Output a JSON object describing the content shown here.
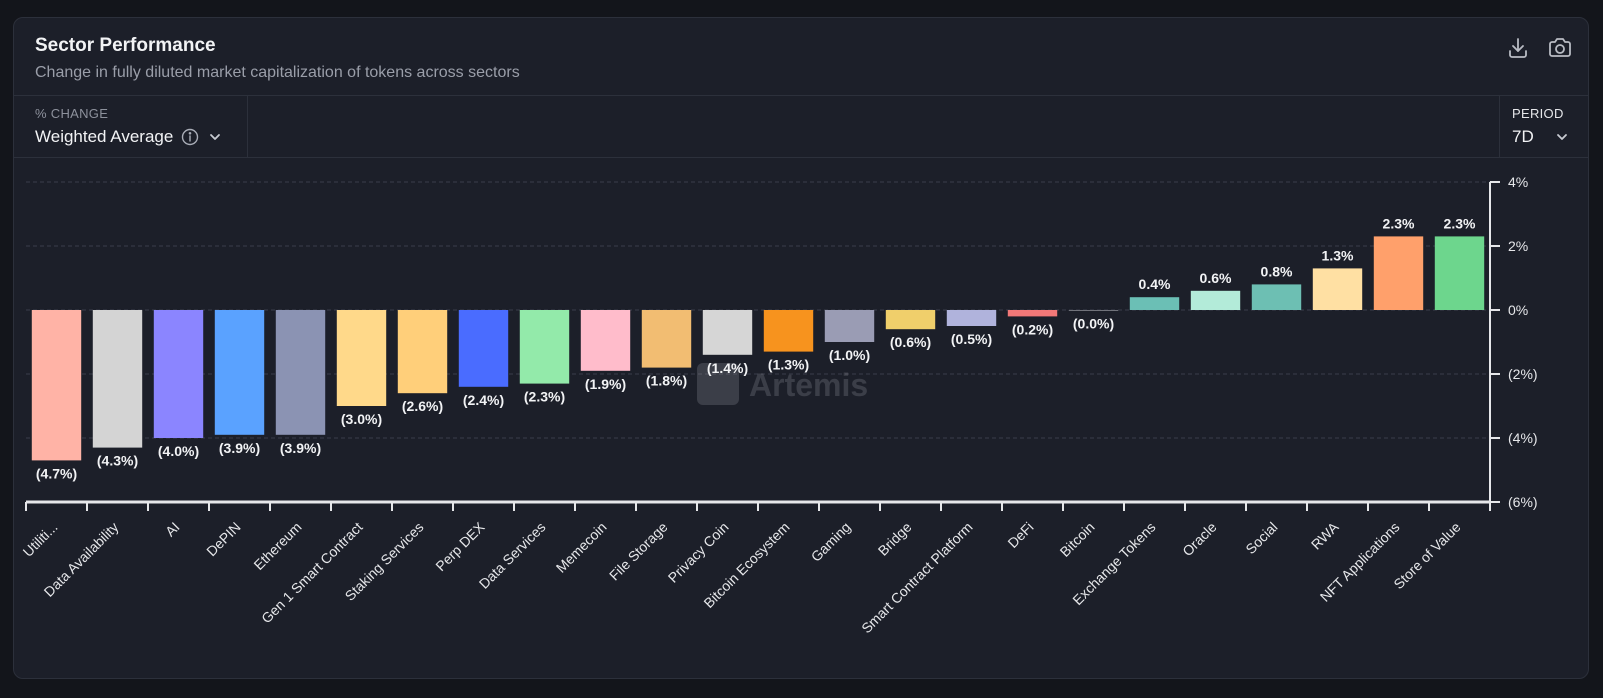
{
  "header": {
    "title": "Sector Performance",
    "subtitle": "Change in fully diluted market capitalization of tokens across sectors",
    "icons": [
      "download-icon",
      "camera-icon"
    ]
  },
  "controls": {
    "change_label": "% CHANGE",
    "change_value": "Weighted Average",
    "period_label": "PERIOD",
    "period_value": "7D"
  },
  "watermark": "Artemis",
  "chart_data": {
    "type": "bar",
    "categories": [
      "Utiliti...",
      "Data Availability",
      "AI",
      "DePIN",
      "Ethereum",
      "Gen 1 Smart Contract",
      "Staking Services",
      "Perp DEX",
      "Data Services",
      "Memecoin",
      "File Storage",
      "Privacy Coin",
      "Bitcoin Ecosystem",
      "Gaming",
      "Bridge",
      "Smart Contract Platform",
      "DeFi",
      "Bitcoin",
      "Exchange Tokens",
      "Oracle",
      "Social",
      "RWA",
      "NFT Applications",
      "Store of Value"
    ],
    "values": [
      -4.7,
      -4.3,
      -4.0,
      -3.9,
      -3.9,
      -3.0,
      -2.6,
      -2.4,
      -2.3,
      -1.9,
      -1.8,
      -1.4,
      -1.3,
      -1.0,
      -0.6,
      -0.5,
      -0.2,
      -0.02,
      0.4,
      0.6,
      0.8,
      1.3,
      2.3,
      2.3
    ],
    "data_labels": [
      "(4.7%)",
      "(4.3%)",
      "(4.0%)",
      "(3.9%)",
      "(3.9%)",
      "(3.0%)",
      "(2.6%)",
      "(2.4%)",
      "(2.3%)",
      "(1.9%)",
      "(1.8%)",
      "(1.4%)",
      "(1.3%)",
      "(1.0%)",
      "(0.6%)",
      "(0.5%)",
      "(0.2%)",
      "(0.0%)",
      "0.4%",
      "0.6%",
      "0.8%",
      "1.3%",
      "2.3%",
      "2.3%"
    ],
    "colors": [
      "#ffb3a6",
      "#d4d4d4",
      "#8b85ff",
      "#5aa2ff",
      "#8b93b3",
      "#ffd98a",
      "#ffcf7a",
      "#4a6cff",
      "#93eaaa",
      "#ffbccb",
      "#f2bd72",
      "#d6d6d6",
      "#f7931e",
      "#9a9cb4",
      "#f0cf6b",
      "#b0b3dc",
      "#f27878",
      "#9ea0a8",
      "#6bbfb5",
      "#b3ebd9",
      "#6dbfb3",
      "#ffe0a3",
      "#ffa06b",
      "#6dd68d"
    ],
    "ylim": [
      -6,
      4
    ],
    "yticks": [
      4,
      2,
      0,
      -2,
      -4,
      -6
    ],
    "ytick_labels": [
      "4%",
      "2%",
      "0%",
      "(2%)",
      "(4%)",
      "(6%)"
    ],
    "grid": true,
    "axis_position": "right"
  }
}
